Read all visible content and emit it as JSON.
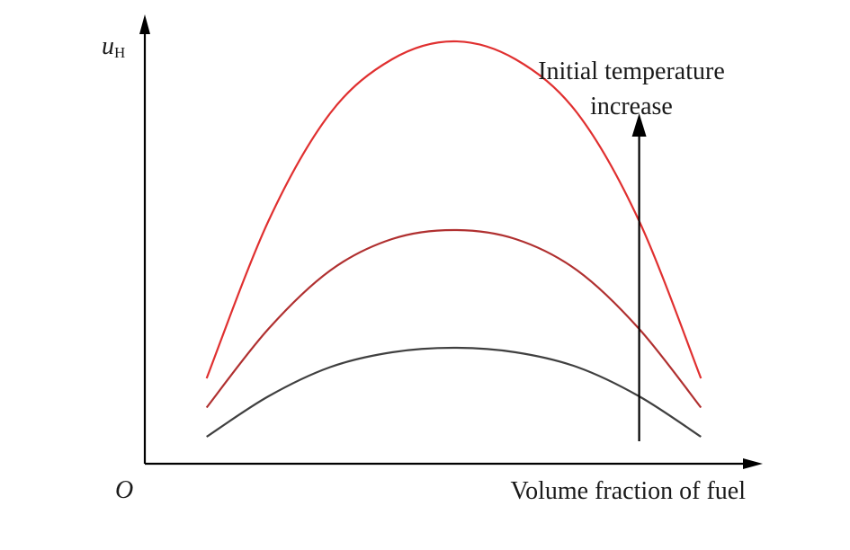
{
  "chart_data": {
    "type": "line",
    "axis_labels": {
      "y_symbol": "u",
      "y_subscript": "H",
      "x_label": "Volume fraction of fuel",
      "origin": "O"
    },
    "xlim": [
      0,
      1
    ],
    "ylim": [
      0,
      1
    ],
    "x": [
      0.1,
      0.2,
      0.3,
      0.4,
      0.5,
      0.6,
      0.7,
      0.8,
      0.9
    ],
    "series": [
      {
        "values": [
          0.06,
          0.15,
          0.215,
          0.248,
          0.258,
          0.248,
          0.215,
          0.15,
          0.06
        ],
        "color": "#404040"
      },
      {
        "values": [
          0.125,
          0.3,
          0.43,
          0.5,
          0.52,
          0.5,
          0.43,
          0.3,
          0.125
        ],
        "color": "#b03030"
      },
      {
        "values": [
          0.19,
          0.54,
          0.78,
          0.9,
          0.94,
          0.9,
          0.78,
          0.54,
          0.19
        ],
        "color": "#e03030"
      }
    ],
    "annotation": {
      "lines": [
        "Initial temperature",
        "increase"
      ],
      "arrow_x": 0.8,
      "arrow_from_y": 0.05,
      "arrow_to_y": 0.78,
      "direction": "up"
    },
    "grid": false
  }
}
